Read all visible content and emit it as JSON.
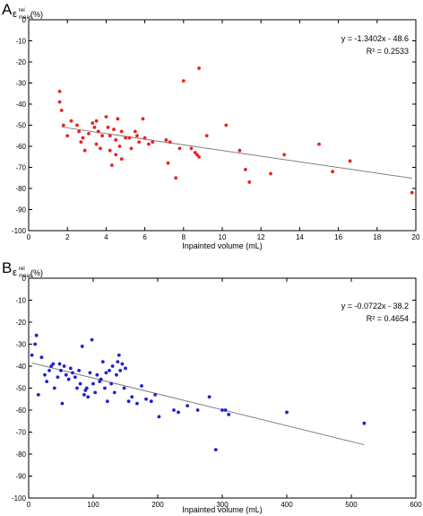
{
  "panels": [
    {
      "letter": "A",
      "ylabel_main": "ε",
      "ylabel_sup": "rel",
      "ylabel_sub": "mean",
      "ylabel_unit": "(%)"
    },
    {
      "letter": "B",
      "ylabel_main": "ε",
      "ylabel_sup": "rel",
      "ylabel_sub": "mean",
      "ylabel_unit": "(%)"
    }
  ],
  "chart_data": [
    {
      "type": "scatter",
      "xlabel": "Inpainted volume (mL)",
      "ylabel": "ε rel mean (%)",
      "xlim": [
        0,
        20
      ],
      "ylim": [
        -100,
        0
      ],
      "xticks": [
        0,
        2,
        4,
        6,
        8,
        10,
        12,
        14,
        16,
        18,
        20
      ],
      "yticks": [
        0,
        -10,
        -20,
        -30,
        -40,
        -50,
        -60,
        -70,
        -80,
        -90,
        -100
      ],
      "marker_color": "#e8231f",
      "fit_color": "#808080",
      "equation": "y = -1.3402x - 48.6",
      "r2_label": "R² = 0.2533",
      "fit": {
        "slope": -1.3402,
        "intercept": -48.6,
        "x_range": [
          1.7,
          19.8
        ]
      },
      "points": [
        [
          1.6,
          -34
        ],
        [
          1.6,
          -39
        ],
        [
          1.7,
          -43
        ],
        [
          1.8,
          -50
        ],
        [
          2.0,
          -55
        ],
        [
          2.2,
          -48
        ],
        [
          2.5,
          -50
        ],
        [
          2.6,
          -53
        ],
        [
          2.7,
          -58
        ],
        [
          2.8,
          -56
        ],
        [
          2.9,
          -62
        ],
        [
          3.1,
          -54
        ],
        [
          3.3,
          -49
        ],
        [
          3.4,
          -51
        ],
        [
          3.5,
          -48
        ],
        [
          3.5,
          -59
        ],
        [
          3.6,
          -53
        ],
        [
          3.7,
          -61
        ],
        [
          3.8,
          -55
        ],
        [
          4.0,
          -46
        ],
        [
          4.1,
          -51
        ],
        [
          4.2,
          -55
        ],
        [
          4.2,
          -62
        ],
        [
          4.3,
          -69
        ],
        [
          4.4,
          -52
        ],
        [
          4.5,
          -57
        ],
        [
          4.5,
          -64
        ],
        [
          4.6,
          -47
        ],
        [
          4.7,
          -60
        ],
        [
          4.8,
          -66
        ],
        [
          4.8,
          -53
        ],
        [
          5.0,
          -56
        ],
        [
          5.2,
          -56
        ],
        [
          5.3,
          -61
        ],
        [
          5.5,
          -53
        ],
        [
          5.6,
          -55
        ],
        [
          5.7,
          -58
        ],
        [
          5.9,
          -47
        ],
        [
          6.0,
          -56
        ],
        [
          6.2,
          -59
        ],
        [
          6.4,
          -58
        ],
        [
          7.1,
          -57
        ],
        [
          7.2,
          -68
        ],
        [
          7.3,
          -58
        ],
        [
          7.6,
          -75
        ],
        [
          7.8,
          -61
        ],
        [
          8.0,
          -29
        ],
        [
          8.4,
          -61
        ],
        [
          8.6,
          -63
        ],
        [
          8.7,
          -64
        ],
        [
          8.8,
          -23
        ],
        [
          8.8,
          -65
        ],
        [
          9.2,
          -55
        ],
        [
          10.2,
          -50
        ],
        [
          10.9,
          -62
        ],
        [
          11.2,
          -71
        ],
        [
          11.4,
          -77
        ],
        [
          12.5,
          -73
        ],
        [
          13.2,
          -64
        ],
        [
          15.0,
          -59
        ],
        [
          15.7,
          -72
        ],
        [
          16.6,
          -67
        ],
        [
          19.8,
          -82
        ]
      ]
    },
    {
      "type": "scatter",
      "xlabel": "Inpainted volume (mL)",
      "ylabel": "ε rel mean (%)",
      "xlim": [
        0,
        600
      ],
      "ylim": [
        -100,
        0
      ],
      "xticks": [
        0,
        100,
        200,
        300,
        400,
        500,
        600
      ],
      "yticks": [
        0,
        -10,
        -20,
        -30,
        -40,
        -50,
        -60,
        -70,
        -80,
        -90,
        -100
      ],
      "marker_color": "#1f1fd6",
      "fit_color": "#808080",
      "equation": "y = -0.0722x - 38.2",
      "r2_label": "R² = 0.4654",
      "fit": {
        "slope": -0.0722,
        "intercept": -38.2,
        "x_range": [
          5,
          520
        ]
      },
      "points": [
        [
          5,
          -35
        ],
        [
          10,
          -30
        ],
        [
          12,
          -26
        ],
        [
          15,
          -53
        ],
        [
          20,
          -36
        ],
        [
          25,
          -44
        ],
        [
          28,
          -47
        ],
        [
          32,
          -42
        ],
        [
          35,
          -40
        ],
        [
          38,
          -39
        ],
        [
          40,
          -50
        ],
        [
          45,
          -45
        ],
        [
          48,
          -39
        ],
        [
          50,
          -42
        ],
        [
          52,
          -57
        ],
        [
          55,
          -40
        ],
        [
          58,
          -44
        ],
        [
          62,
          -46
        ],
        [
          65,
          -41
        ],
        [
          68,
          -43
        ],
        [
          72,
          -45
        ],
        [
          75,
          -50
        ],
        [
          78,
          -42
        ],
        [
          80,
          -48
        ],
        [
          83,
          -31
        ],
        [
          86,
          -53
        ],
        [
          88,
          -51
        ],
        [
          90,
          -50
        ],
        [
          92,
          -54
        ],
        [
          95,
          -43
        ],
        [
          98,
          -28
        ],
        [
          100,
          -48
        ],
        [
          103,
          -52
        ],
        [
          106,
          -44
        ],
        [
          110,
          -47
        ],
        [
          112,
          -46
        ],
        [
          115,
          -38
        ],
        [
          118,
          -50
        ],
        [
          120,
          -43
        ],
        [
          122,
          -56
        ],
        [
          125,
          -42
        ],
        [
          128,
          -48
        ],
        [
          130,
          -40
        ],
        [
          133,
          -52
        ],
        [
          136,
          -44
        ],
        [
          138,
          -38
        ],
        [
          140,
          -35
        ],
        [
          142,
          -42
        ],
        [
          145,
          -39
        ],
        [
          148,
          -50
        ],
        [
          150,
          -41
        ],
        [
          155,
          -56
        ],
        [
          160,
          -54
        ],
        [
          168,
          -57
        ],
        [
          175,
          -49
        ],
        [
          182,
          -55
        ],
        [
          190,
          -56
        ],
        [
          196,
          -53
        ],
        [
          202,
          -63
        ],
        [
          225,
          -60
        ],
        [
          232,
          -61
        ],
        [
          246,
          -58
        ],
        [
          262,
          -60
        ],
        [
          280,
          -54
        ],
        [
          290,
          -78
        ],
        [
          300,
          -60
        ],
        [
          305,
          -60
        ],
        [
          310,
          -62
        ],
        [
          400,
          -61
        ],
        [
          520,
          -66
        ]
      ]
    }
  ]
}
